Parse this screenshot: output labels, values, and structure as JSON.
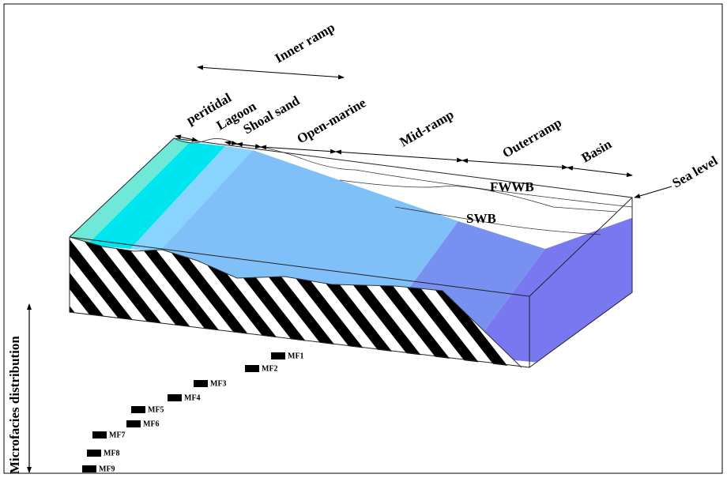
{
  "inner_ramp": "Inner ramp",
  "zones": [
    {
      "label": "peritidal"
    },
    {
      "label": "Lagoon"
    },
    {
      "label": "Shoal sand"
    },
    {
      "label": "Open-marine"
    },
    {
      "label": "Mid-ramp"
    },
    {
      "label": "Outerramp"
    },
    {
      "label": "Basin"
    }
  ],
  "boundaries": [
    "FWWB",
    "SWB"
  ],
  "sea_level": "Sea level",
  "axis_label": "Microfacies  distribution",
  "microfacies": [
    "MF1",
    "MF2",
    "MF3",
    "MF4",
    "MF5",
    "MF6",
    "MF7",
    "MF8",
    "MF9"
  ]
}
